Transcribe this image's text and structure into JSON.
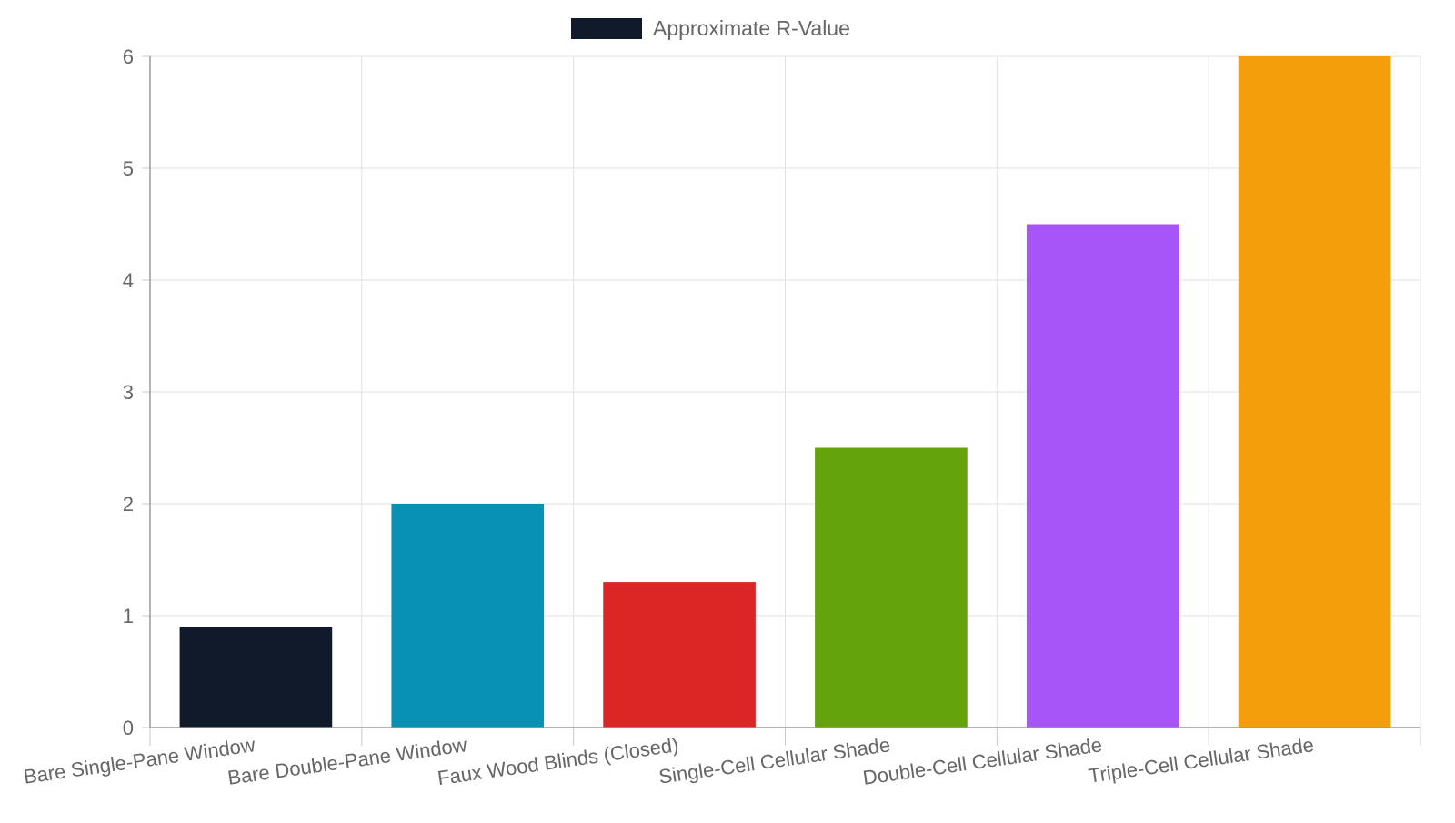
{
  "chart_data": {
    "type": "bar",
    "legend": {
      "position": "top-center",
      "label": "Approximate R-Value",
      "swatch_color": "#111a2b"
    },
    "categories": [
      "Bare Single-Pane Window",
      "Bare Double-Pane Window",
      "Faux Wood Blinds (Closed)",
      "Single-Cell Cellular Shade",
      "Double-Cell Cellular Shade",
      "Triple-Cell Cellular Shade"
    ],
    "series": [
      {
        "name": "Approximate R-Value",
        "values": [
          0.9,
          2.0,
          1.3,
          2.5,
          4.5,
          6.0
        ],
        "colors": [
          "#111a2b",
          "#0891b2",
          "#dc2626",
          "#65a30d",
          "#a855f7",
          "#f59e0b"
        ]
      }
    ],
    "ylim": [
      0,
      6
    ],
    "yticks": [
      0,
      1,
      2,
      3,
      4,
      5,
      6
    ],
    "grid": true,
    "title": "",
    "xlabel": "",
    "ylabel": ""
  }
}
